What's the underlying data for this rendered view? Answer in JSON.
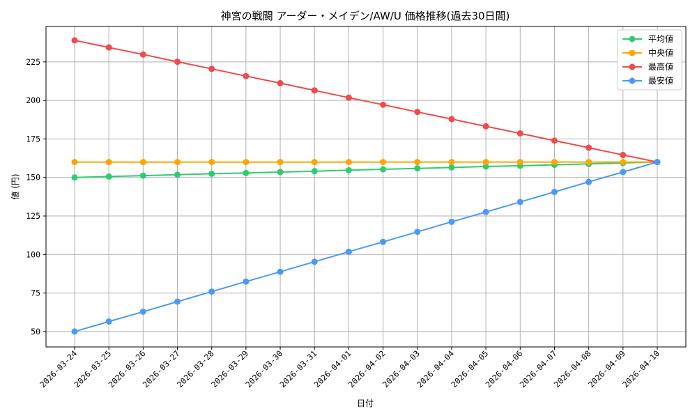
{
  "chart_data": {
    "type": "line",
    "title": "神宮の戦闘 アーダー・メイデン/AW/U 価格推移(過去30日間)",
    "xlabel": "日付",
    "ylabel": "値 (円)",
    "ylim": [
      40,
      248
    ],
    "yticks": [
      50,
      75,
      100,
      125,
      150,
      175,
      200,
      225
    ],
    "grid": true,
    "legend_position": "top-right",
    "categories": [
      "2026-03-24",
      "2026-03-25",
      "2026-03-26",
      "2026-03-27",
      "2026-03-28",
      "2026-03-29",
      "2026-03-30",
      "2026-03-31",
      "2026-04-01",
      "2026-04-02",
      "2026-04-03",
      "2026-04-04",
      "2026-04-05",
      "2026-04-06",
      "2026-04-07",
      "2026-04-08",
      "2026-04-09",
      "2026-04-10"
    ],
    "series": [
      {
        "name": "平均値",
        "color": "#2ecc71",
        "values": [
          150,
          150.6,
          151.2,
          151.8,
          152.4,
          152.9,
          153.5,
          154.1,
          154.7,
          155.3,
          155.9,
          156.5,
          157.1,
          157.6,
          158.2,
          158.8,
          159.4,
          160
        ]
      },
      {
        "name": "中央値",
        "color": "#ffa500",
        "values": [
          160,
          160,
          160,
          160,
          160,
          160,
          160,
          160,
          160,
          160,
          160,
          160,
          160,
          160,
          160,
          160,
          160,
          160
        ]
      },
      {
        "name": "最高値",
        "color": "#f04a4a",
        "values": [
          239,
          234.4,
          229.8,
          225.1,
          220.5,
          215.8,
          211.2,
          206.5,
          201.8,
          197.2,
          192.5,
          187.9,
          183.2,
          178.6,
          173.9,
          169.3,
          164.6,
          160
        ]
      },
      {
        "name": "最安値",
        "color": "#4a9af5",
        "values": [
          50,
          56.5,
          62.9,
          69.4,
          75.9,
          82.4,
          88.8,
          95.3,
          101.8,
          108.2,
          114.7,
          121.2,
          127.6,
          134.1,
          140.6,
          147.1,
          153.5,
          160
        ]
      }
    ]
  }
}
